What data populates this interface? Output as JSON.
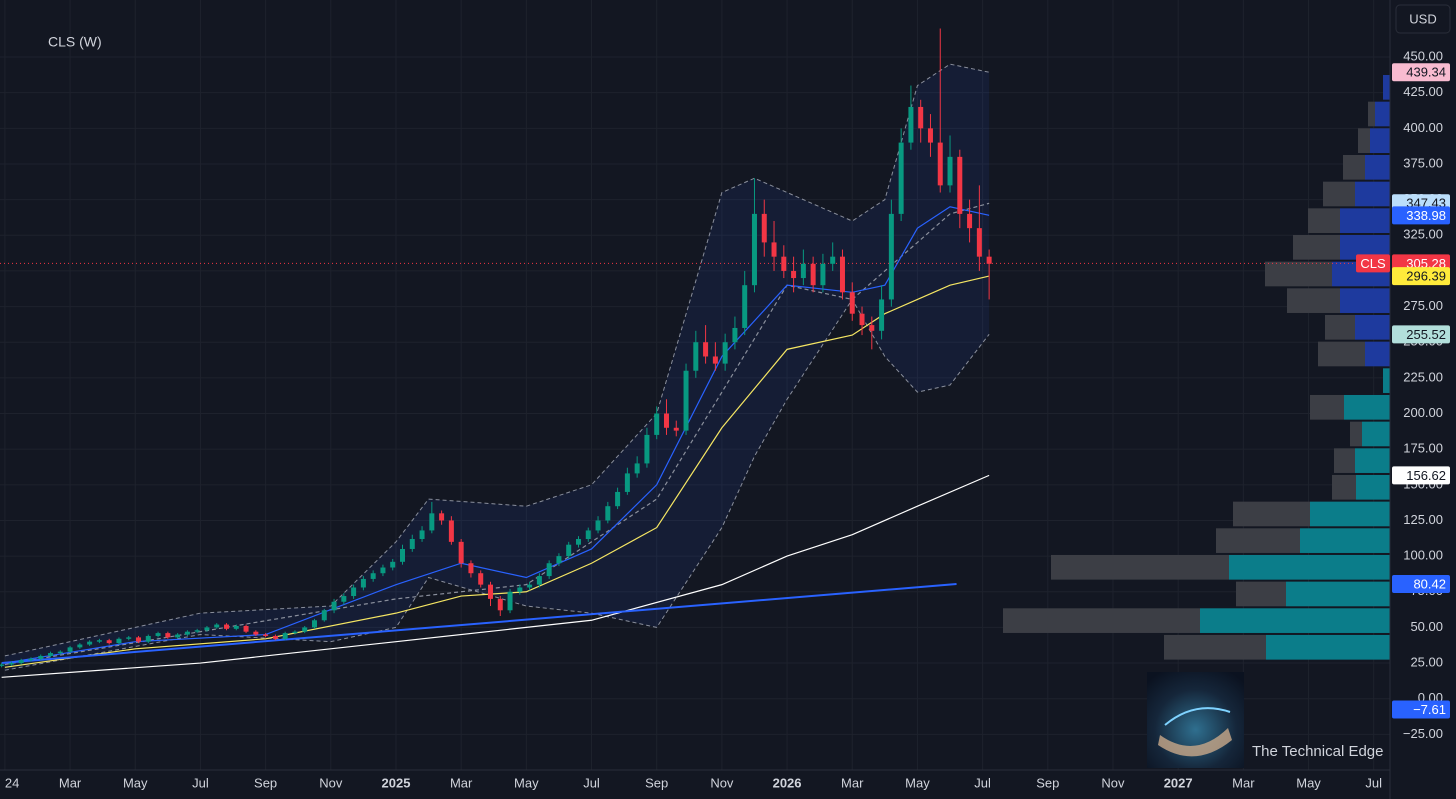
{
  "chart_data": {
    "type": "candlestick",
    "title": "CLS (W)",
    "currency": "USD",
    "watermark": "The Technical Edge",
    "up_color": "#089981",
    "down_color": "#f23645",
    "grid": true,
    "xlim": [
      -0.15,
      42.5
    ],
    "ylim": [
      -50,
      490
    ],
    "xticks": [
      {
        "value": 0,
        "label": "24"
      },
      {
        "value": 2,
        "label": "Mar"
      },
      {
        "value": 4,
        "label": "May"
      },
      {
        "value": 6,
        "label": "Jul"
      },
      {
        "value": 8,
        "label": "Sep"
      },
      {
        "value": 10,
        "label": "Nov"
      },
      {
        "value": 12,
        "label": "2025"
      },
      {
        "value": 14,
        "label": "Mar"
      },
      {
        "value": 16,
        "label": "May"
      },
      {
        "value": 18,
        "label": "Jul"
      },
      {
        "value": 20,
        "label": "Sep"
      },
      {
        "value": 22,
        "label": "Nov"
      },
      {
        "value": 24,
        "label": "2026"
      },
      {
        "value": 26,
        "label": "Mar"
      },
      {
        "value": 28,
        "label": "May"
      },
      {
        "value": 30,
        "label": "Jul"
      },
      {
        "value": 32,
        "label": "Sep"
      },
      {
        "value": 34,
        "label": "Nov"
      },
      {
        "value": 36,
        "label": "2027"
      },
      {
        "value": 38,
        "label": "Mar"
      },
      {
        "value": 40,
        "label": "May"
      },
      {
        "value": 42,
        "label": "Jul"
      }
    ],
    "yticks": [
      {
        "value": 450,
        "label": "450.00"
      },
      {
        "value": 425,
        "label": "425.00"
      },
      {
        "value": 400,
        "label": "400.00"
      },
      {
        "value": 375,
        "label": "375.00"
      },
      {
        "value": 350,
        "label": "350.00"
      },
      {
        "value": 325,
        "label": "325.00"
      },
      {
        "value": 300,
        "label": "300.00"
      },
      {
        "value": 275,
        "label": "275.00"
      },
      {
        "value": 250,
        "label": "250.00"
      },
      {
        "value": 225,
        "label": "225.00"
      },
      {
        "value": 200,
        "label": "200.00"
      },
      {
        "value": 175,
        "label": "175.00"
      },
      {
        "value": 150,
        "label": "150.00"
      },
      {
        "value": 125,
        "label": "125.00"
      },
      {
        "value": 100,
        "label": "100.00"
      },
      {
        "value": 75,
        "label": "75.00"
      },
      {
        "value": 50,
        "label": "50.00"
      },
      {
        "value": 25,
        "label": "25.00"
      },
      {
        "value": 0,
        "label": "0.00"
      },
      {
        "value": -25,
        "label": "−25.00"
      }
    ],
    "candles": {
      "x": [
        -0.1,
        0.2,
        0.5,
        0.8,
        1.1,
        1.4,
        1.7,
        2.0,
        2.3,
        2.6,
        2.9,
        3.2,
        3.5,
        3.8,
        4.1,
        4.4,
        4.7,
        5.0,
        5.3,
        5.6,
        5.9,
        6.2,
        6.5,
        6.8,
        7.1,
        7.4,
        7.7,
        8.0,
        8.3,
        8.6,
        8.9,
        9.2,
        9.5,
        9.8,
        10.1,
        10.4,
        10.7,
        11.0,
        11.3,
        11.6,
        11.9,
        12.2,
        12.5,
        12.8,
        13.1,
        13.4,
        13.7,
        14.0,
        14.3,
        14.6,
        14.9,
        15.2,
        15.5,
        15.8,
        16.1,
        16.4,
        16.7,
        17.0,
        17.3,
        17.6,
        17.9,
        18.2,
        18.5,
        18.8,
        19.1,
        19.4,
        19.7,
        20.0,
        20.3,
        20.6,
        20.9,
        21.2,
        21.5,
        21.8,
        22.1,
        22.4,
        22.7,
        23.0,
        23.3,
        23.6,
        23.9,
        24.2,
        24.5,
        24.8,
        25.1,
        25.4,
        25.7,
        26.0,
        26.3,
        26.6,
        26.9,
        27.2,
        27.5,
        27.8,
        28.1,
        28.4,
        28.7,
        29.0,
        29.3,
        29.6,
        29.9,
        30.2
      ],
      "open": [
        23,
        24,
        25,
        27,
        28,
        30,
        32,
        33,
        36,
        38,
        40,
        41,
        39,
        42,
        43,
        40,
        44,
        46,
        43,
        45,
        47,
        48,
        50,
        52,
        49,
        51,
        47,
        45,
        44,
        42,
        46,
        47,
        50,
        55,
        62,
        68,
        72,
        78,
        84,
        88,
        92,
        96,
        105,
        112,
        118,
        130,
        125,
        110,
        95,
        88,
        80,
        70,
        62,
        75,
        78,
        80,
        86,
        95,
        100,
        108,
        112,
        118,
        125,
        135,
        145,
        158,
        165,
        185,
        200,
        190,
        188,
        230,
        250,
        240,
        235,
        250,
        260,
        290,
        340,
        320,
        310,
        300,
        295,
        305,
        290,
        305,
        310,
        285,
        270,
        262,
        258,
        280,
        340,
        390,
        415,
        400,
        390,
        360,
        380,
        340,
        330,
        310
      ],
      "high": [
        25,
        26,
        28,
        29,
        31,
        33,
        34,
        37,
        39,
        41,
        42,
        42,
        43,
        44,
        44,
        45,
        47,
        47,
        46,
        48,
        49,
        51,
        53,
        53,
        52,
        52,
        48,
        46,
        45,
        47,
        48,
        51,
        56,
        63,
        70,
        74,
        80,
        86,
        90,
        94,
        98,
        108,
        115,
        121,
        138,
        132,
        128,
        112,
        97,
        90,
        82,
        72,
        77,
        80,
        82,
        88,
        97,
        102,
        110,
        114,
        120,
        128,
        138,
        148,
        162,
        170,
        190,
        205,
        210,
        195,
        235,
        258,
        262,
        250,
        256,
        268,
        300,
        365,
        350,
        335,
        318,
        310,
        315,
        310,
        312,
        320,
        315,
        292,
        275,
        268,
        290,
        350,
        400,
        430,
        420,
        410,
        470,
        395,
        385,
        350,
        360,
        315
      ],
      "low": [
        22,
        23,
        24,
        26,
        27,
        29,
        31,
        32,
        35,
        37,
        39,
        38,
        38,
        41,
        39,
        39,
        43,
        42,
        42,
        44,
        46,
        47,
        49,
        48,
        48,
        46,
        44,
        43,
        41,
        41,
        45,
        46,
        49,
        54,
        60,
        66,
        70,
        76,
        82,
        86,
        90,
        94,
        103,
        110,
        116,
        122,
        108,
        92,
        85,
        78,
        65,
        58,
        60,
        73,
        76,
        78,
        84,
        93,
        98,
        106,
        110,
        116,
        123,
        133,
        143,
        155,
        162,
        182,
        185,
        184,
        185,
        225,
        235,
        230,
        230,
        245,
        255,
        285,
        310,
        300,
        295,
        285,
        290,
        285,
        285,
        300,
        280,
        265,
        255,
        245,
        252,
        275,
        335,
        385,
        390,
        380,
        355,
        355,
        330,
        320,
        300,
        280
      ],
      "close": [
        24,
        25,
        27,
        28,
        30,
        32,
        33,
        36,
        38,
        40,
        41,
        39,
        42,
        43,
        40,
        44,
        46,
        43,
        45,
        47,
        48,
        50,
        52,
        49,
        51,
        47,
        45,
        44,
        42,
        46,
        47,
        50,
        55,
        62,
        68,
        72,
        78,
        84,
        88,
        92,
        96,
        105,
        112,
        118,
        130,
        125,
        110,
        95,
        88,
        80,
        70,
        62,
        75,
        78,
        80,
        86,
        95,
        100,
        108,
        112,
        118,
        125,
        135,
        145,
        158,
        165,
        185,
        200,
        190,
        188,
        230,
        250,
        240,
        235,
        250,
        260,
        290,
        340,
        320,
        310,
        300,
        295,
        305,
        290,
        305,
        310,
        285,
        270,
        262,
        258,
        280,
        340,
        390,
        415,
        400,
        390,
        360,
        380,
        340,
        330,
        310,
        305
      ]
    },
    "bands": {
      "color": "#8a8f9c",
      "fill": "rgba(41,98,255,0.09)",
      "x": [
        0,
        6,
        10,
        12,
        13,
        16,
        18,
        20,
        22,
        23,
        24,
        26,
        27,
        28,
        29,
        30.2
      ],
      "upper": [
        30,
        60,
        65,
        110,
        140,
        135,
        150,
        200,
        355,
        365,
        355,
        335,
        350,
        430,
        445,
        439.34
      ],
      "lower": [
        20,
        45,
        40,
        50,
        85,
        65,
        60,
        50,
        120,
        170,
        210,
        280,
        240,
        215,
        220,
        255.52
      ]
    },
    "lines": [
      {
        "color": "#8a8f9c",
        "dashed": true,
        "x": [
          0,
          12,
          16,
          20,
          24,
          26,
          28,
          29,
          30.2
        ],
        "values": [
          24,
          70,
          80,
          140,
          290,
          280,
          320,
          340,
          347.43
        ]
      },
      {
        "color": "#2962ff",
        "x": [
          0,
          4,
          8,
          12,
          14,
          16,
          18,
          20,
          22,
          24,
          26,
          27,
          28,
          29,
          30.2
        ],
        "values": [
          25,
          40,
          45,
          80,
          95,
          85,
          105,
          150,
          240,
          290,
          285,
          290,
          330,
          345,
          338.98
        ]
      },
      {
        "color": "#f5e663",
        "x": [
          0,
          4,
          8,
          12,
          14,
          16,
          18,
          20,
          22,
          24,
          26,
          27,
          28,
          29,
          30.2
        ],
        "values": [
          22,
          35,
          42,
          60,
          72,
          75,
          95,
          120,
          190,
          245,
          255,
          270,
          280,
          290,
          296.39
        ]
      },
      {
        "color": "#ffffff",
        "x": [
          -0.1,
          6,
          12,
          18,
          22,
          24,
          26,
          28,
          30.2
        ],
        "values": [
          15,
          25,
          40,
          55,
          80,
          100,
          115,
          135,
          156.62
        ]
      },
      {
        "color": "#2962ff",
        "width": 2,
        "x": [
          -0.1,
          29.2
        ],
        "values": [
          25,
          80.42
        ]
      }
    ],
    "volume_profile": {
      "xlim": [
        0,
        400
      ],
      "bins": [
        26.7,
        45.4,
        64.1,
        82.8,
        101.5,
        120.2,
        138.9,
        157.6,
        176.3,
        195.0,
        213.7,
        232.4,
        251.1,
        269.8,
        288.5,
        307.2,
        325.9,
        344.6,
        363.3,
        382.0,
        400.7,
        419.4,
        438.1
      ],
      "series": [
        {
          "colors": [
            "#0b7d8a",
            "#0b7d8a",
            "#0b7d8a",
            "#0b7d8a",
            "#0b7d8a",
            "#0b7d8a",
            "#0b7d8a",
            "#0b7d8a",
            "#0b7d8a",
            "#0b7d8a",
            "#0b7d8a",
            "#1e3a9e",
            "#1e3a9e",
            "#1e3a9e",
            "#1e3a9e",
            "#1e3a9e",
            "#1e3a9e",
            "#1e3a9e",
            "#1e3a9e",
            "#1e3a9e",
            "#1e3a9e",
            "#1e3a9e"
          ],
          "values": [
            124,
            190,
            104,
            161,
            90,
            80,
            34,
            35,
            28,
            46,
            7,
            25,
            35,
            50,
            58,
            50,
            50,
            35,
            25,
            20,
            15,
            7
          ]
        },
        {
          "color": "#3c3e45",
          "values": [
            102,
            197,
            50,
            178,
            84,
            77,
            24,
            21,
            12,
            34,
            0,
            47,
            30,
            53,
            67,
            47,
            32,
            32,
            22,
            12,
            7,
            0
          ]
        }
      ]
    },
    "symbol_tag": "CLS",
    "price_tags": [
      {
        "value": 439.34,
        "color": "#f8bbd0",
        "text_color": "#131722"
      },
      {
        "value": 347.43,
        "color": "#bbdefb",
        "text_color": "#131722"
      },
      {
        "value": 338.98,
        "color": "#2962ff",
        "text_color": "#ffffff"
      },
      {
        "value": 305.28,
        "color": "#f23645",
        "text_color": "#ffffff"
      },
      {
        "value": 296.39,
        "color": "#ffeb3b",
        "text_color": "#131722"
      },
      {
        "value": 255.52,
        "color": "#b2dfdb",
        "text_color": "#131722"
      },
      {
        "value": 156.62,
        "color": "#ffffff",
        "text_color": "#131722"
      },
      {
        "value": 80.42,
        "color": "#2962ff",
        "text_color": "#ffffff"
      },
      {
        "value": -7.61,
        "label": "−7.61",
        "color": "#2962ff",
        "text_color": "#ffffff"
      }
    ],
    "last_price_tag": 3
  }
}
